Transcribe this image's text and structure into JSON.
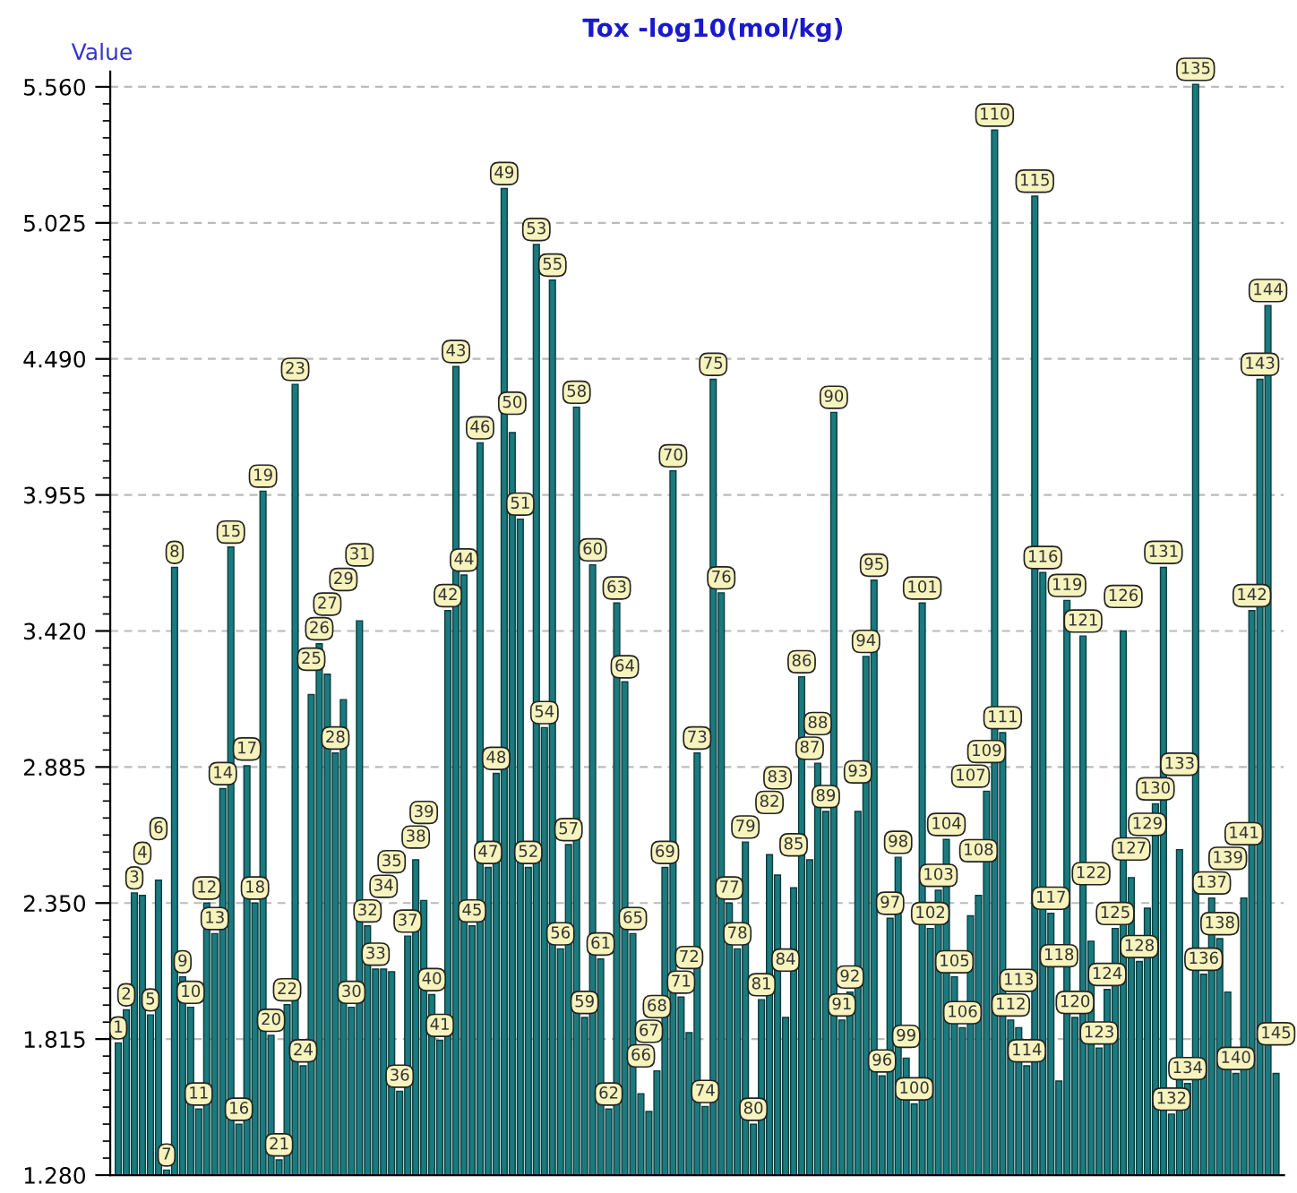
{
  "chart_data": {
    "type": "bar",
    "title": "Tox -log10(mol/kg)",
    "ylabel": "Value",
    "categories": [
      "1",
      "2",
      "3",
      "4",
      "5",
      "6",
      "7",
      "8",
      "9",
      "10",
      "11",
      "12",
      "13",
      "14",
      "15",
      "16",
      "17",
      "18",
      "19",
      "20",
      "21",
      "22",
      "23",
      "24",
      "25",
      "26",
      "27",
      "28",
      "29",
      "30",
      "31",
      "32",
      "33",
      "34",
      "35",
      "36",
      "37",
      "38",
      "39",
      "40",
      "41",
      "42",
      "43",
      "44",
      "45",
      "46",
      "47",
      "48",
      "49",
      "50",
      "51",
      "52",
      "53",
      "54",
      "55",
      "56",
      "57",
      "58",
      "59",
      "60",
      "61",
      "62",
      "63",
      "64",
      "65",
      "66",
      "67",
      "68",
      "69",
      "70",
      "71",
      "72",
      "73",
      "74",
      "75",
      "76",
      "77",
      "78",
      "79",
      "80",
      "81",
      "82",
      "83",
      "84",
      "85",
      "86",
      "87",
      "88",
      "89",
      "90",
      "91",
      "92",
      "93",
      "94",
      "95",
      "96",
      "97",
      "98",
      "99",
      "100",
      "101",
      "102",
      "103",
      "104",
      "105",
      "106",
      "107",
      "108",
      "109",
      "110",
      "111",
      "112",
      "113",
      "114",
      "115",
      "116",
      "117",
      "118",
      "119",
      "120",
      "121",
      "122",
      "123",
      "124",
      "125",
      "126",
      "127",
      "128",
      "129",
      "130",
      "131",
      "132",
      "133",
      "134",
      "135",
      "136",
      "137",
      "138",
      "139",
      "140",
      "141",
      "142",
      "143",
      "144",
      "145"
    ],
    "values": [
      1.8,
      1.93,
      2.39,
      2.38,
      1.91,
      2.44,
      1.3,
      3.67,
      2.06,
      1.94,
      1.54,
      2.35,
      2.23,
      2.8,
      3.75,
      1.48,
      2.89,
      2.35,
      3.97,
      1.83,
      1.34,
      1.95,
      4.39,
      1.71,
      3.17,
      3.37,
      3.25,
      2.94,
      3.15,
      1.94,
      3.46,
      2.26,
      2.09,
      2.09,
      2.08,
      1.61,
      2.22,
      2.52,
      2.36,
      1.99,
      1.81,
      3.5,
      4.46,
      3.64,
      2.26,
      4.16,
      2.49,
      2.86,
      5.16,
      4.2,
      3.86,
      2.49,
      4.94,
      3.04,
      4.8,
      2.17,
      2.58,
      4.3,
      1.9,
      3.68,
      2.13,
      1.54,
      3.53,
      3.22,
      2.23,
      1.6,
      1.53,
      1.69,
      2.49,
      4.05,
      1.98,
      1.84,
      2.94,
      1.55,
      4.41,
      3.57,
      2.35,
      2.17,
      2.59,
      1.48,
      1.97,
      2.54,
      2.46,
      1.9,
      2.41,
      3.24,
      2.52,
      2.9,
      2.71,
      4.28,
      1.89,
      2.0,
      2.71,
      3.32,
      3.62,
      1.67,
      2.29,
      2.53,
      1.74,
      1.56,
      3.53,
      2.25,
      2.4,
      2.6,
      2.06,
      1.86,
      2.3,
      2.38,
      2.79,
      5.39,
      3.02,
      1.89,
      1.86,
      1.71,
      5.13,
      3.65,
      2.31,
      1.65,
      3.54,
      1.9,
      3.4,
      2.2,
      1.78,
      2.01,
      2.25,
      3.42,
      2.45,
      2.12,
      2.33,
      2.74,
      3.67,
      1.52,
      2.56,
      1.64,
      5.57,
      2.07,
      2.37,
      2.21,
      2.0,
      1.68,
      2.37,
      3.5,
      4.41,
      4.7,
      1.68
    ],
    "color": "#1a7a7e",
    "ylim": [
      1.28,
      5.62
    ],
    "yticks": [
      {
        "value": 1.28,
        "label": "1.280"
      },
      1.815,
      {
        "value": 2.35,
        "label": "2.350"
      },
      2.885,
      {
        "value": 3.42,
        "label": "3.420"
      },
      3.955,
      {
        "value": 4.49,
        "label": "4.490"
      },
      5.025,
      {
        "value": 5.56,
        "label": "5.560"
      }
    ],
    "grid": "y",
    "legend": false
  }
}
